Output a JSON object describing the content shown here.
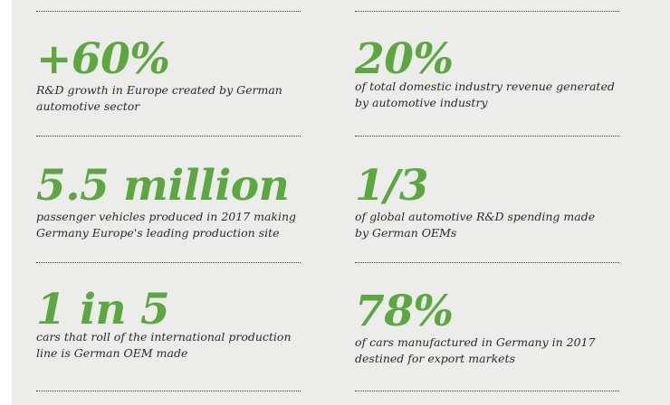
{
  "colors": {
    "accent": "#5aa83e",
    "text": "#2b2b2b",
    "background": "#ececea"
  },
  "stats": [
    {
      "value": "+60%",
      "description_lines": [
        "R&D growth in Europe created by German",
        "automotive sector"
      ]
    },
    {
      "value": "20%",
      "description_lines": [
        "of total domestic industry revenue generated",
        "by automotive industry"
      ]
    },
    {
      "value": "5.5 million",
      "description_lines": [
        "passenger vehicles produced in 2017 making",
        "Germany Europe's leading production site"
      ]
    },
    {
      "value": "1/3",
      "description_lines": [
        "of global automotive R&D spending made",
        "by German OEMs"
      ]
    },
    {
      "value": "1 in 5",
      "description_lines": [
        "cars that roll of the international production",
        "line is German OEM made"
      ]
    },
    {
      "value": "78%",
      "description_lines": [
        "of cars manufactured in Germany in 2017",
        "destined for export markets"
      ]
    }
  ]
}
